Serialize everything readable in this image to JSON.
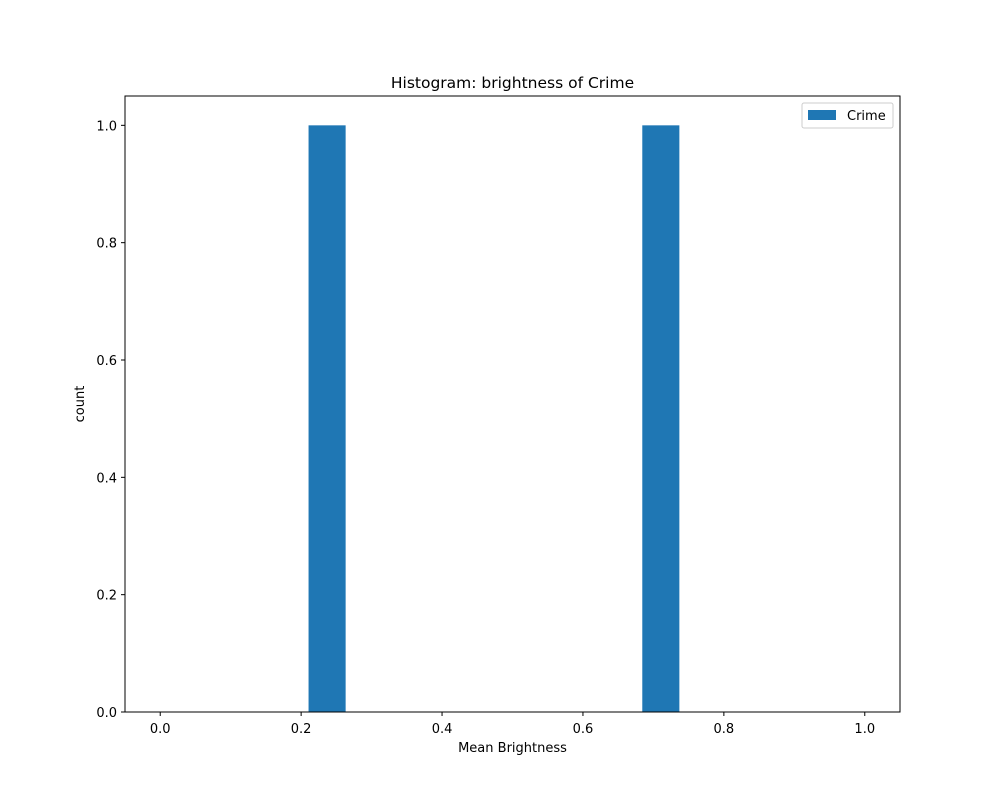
{
  "chart_data": {
    "type": "bar",
    "title": "Histogram: brightness of Crime",
    "xlabel": "Mean Brightness",
    "ylabel": "count",
    "xlim": [
      -0.05,
      1.05
    ],
    "ylim": [
      0,
      1.05
    ],
    "xticks": [
      "0.0",
      "0.2",
      "0.4",
      "0.6",
      "0.8",
      "1.0"
    ],
    "yticks": [
      "0.0",
      "0.2",
      "0.4",
      "0.6",
      "0.8",
      "1.0"
    ],
    "bins": [
      {
        "start": 0.0,
        "end": 0.05263,
        "count": 0
      },
      {
        "start": 0.05263,
        "end": 0.10526,
        "count": 0
      },
      {
        "start": 0.10526,
        "end": 0.15789,
        "count": 0
      },
      {
        "start": 0.15789,
        "end": 0.21053,
        "count": 0
      },
      {
        "start": 0.21053,
        "end": 0.26316,
        "count": 1
      },
      {
        "start": 0.26316,
        "end": 0.31579,
        "count": 0
      },
      {
        "start": 0.31579,
        "end": 0.36842,
        "count": 0
      },
      {
        "start": 0.36842,
        "end": 0.42105,
        "count": 0
      },
      {
        "start": 0.42105,
        "end": 0.47368,
        "count": 0
      },
      {
        "start": 0.47368,
        "end": 0.52632,
        "count": 0
      },
      {
        "start": 0.52632,
        "end": 0.57895,
        "count": 0
      },
      {
        "start": 0.57895,
        "end": 0.63158,
        "count": 0
      },
      {
        "start": 0.63158,
        "end": 0.68421,
        "count": 0
      },
      {
        "start": 0.68421,
        "end": 0.73684,
        "count": 1
      },
      {
        "start": 0.73684,
        "end": 0.78947,
        "count": 0
      },
      {
        "start": 0.78947,
        "end": 0.84211,
        "count": 0
      },
      {
        "start": 0.84211,
        "end": 0.89474,
        "count": 0
      },
      {
        "start": 0.89474,
        "end": 0.94737,
        "count": 0
      },
      {
        "start": 0.94737,
        "end": 1.0,
        "count": 0
      }
    ],
    "series": [
      {
        "name": "Crime",
        "color": "#1f77b4"
      }
    ],
    "legend": {
      "position": "top-right"
    },
    "grid": false
  }
}
